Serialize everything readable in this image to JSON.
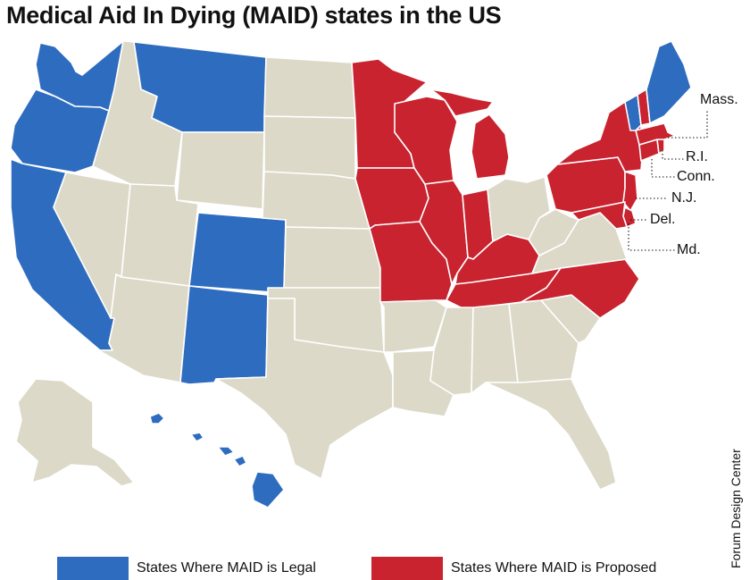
{
  "title": "Medical Aid In Dying (MAID) states in the US",
  "credit": "Forum Design Center",
  "colors": {
    "legal": "#2e6cbf",
    "proposed": "#c8232f",
    "other": "#dcd9c8",
    "border": "#ffffff"
  },
  "legend": [
    {
      "label": "States Where MAID is Legal",
      "status": "legal"
    },
    {
      "label": "States Where MAID is Proposed",
      "status": "proposed"
    }
  ],
  "callouts": [
    {
      "id": "MA",
      "label": "Mass."
    },
    {
      "id": "RI",
      "label": "R.I."
    },
    {
      "id": "CT",
      "label": "Conn."
    },
    {
      "id": "NJ",
      "label": "N.J."
    },
    {
      "id": "DE",
      "label": "Del."
    },
    {
      "id": "MD",
      "label": "Md."
    }
  ],
  "states": {
    "legal": [
      "WA",
      "OR",
      "CA",
      "MT",
      "CO",
      "NM",
      "HI",
      "VT",
      "ME"
    ],
    "proposed": [
      "MN",
      "WI",
      "IA",
      "IL",
      "MO",
      "MI",
      "IN",
      "KY",
      "TN",
      "NC",
      "PA",
      "NY",
      "NH",
      "MA",
      "CT",
      "RI",
      "NJ",
      "DE",
      "MD"
    ]
  }
}
